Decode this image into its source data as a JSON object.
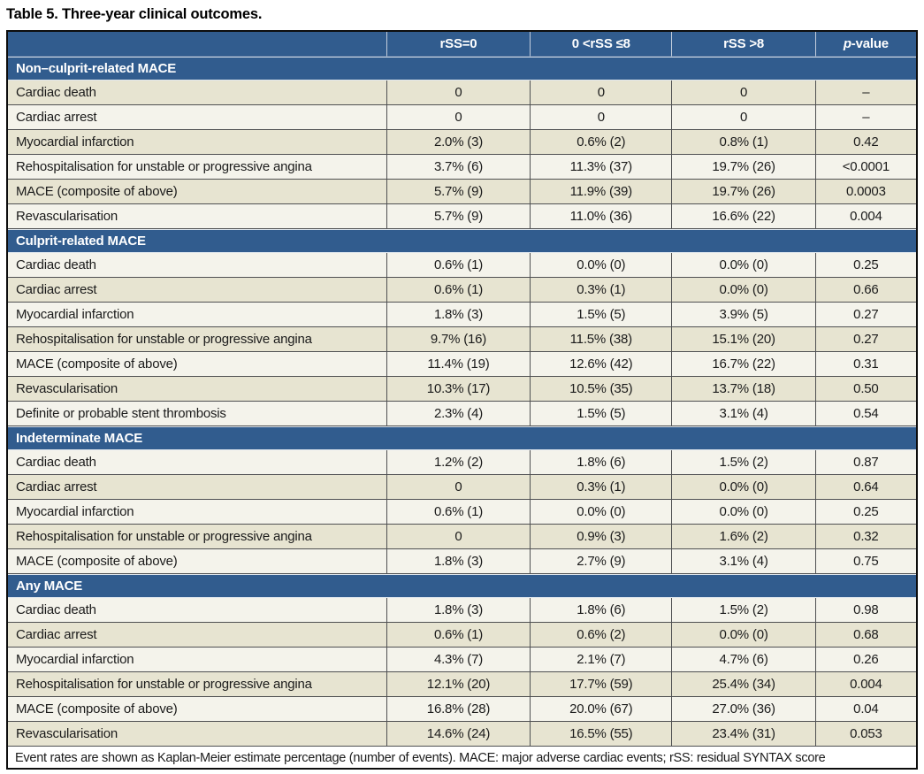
{
  "title": "Table 5. Three-year clinical outcomes.",
  "columns": [
    {
      "label": ""
    },
    {
      "label": "rSS=0"
    },
    {
      "label": "0 <rSS ≤8"
    },
    {
      "label": "rSS >8"
    },
    {
      "label": "p-value",
      "italic_prefix": "p",
      "suffix": "-value"
    }
  ],
  "sections": [
    {
      "header": "Non–culprit-related MACE",
      "rows": [
        {
          "label": "Cardiac death",
          "values": [
            "0",
            "0",
            "0",
            "–"
          ]
        },
        {
          "label": "Cardiac arrest",
          "values": [
            "0",
            "0",
            "0",
            "–"
          ]
        },
        {
          "label": "Myocardial infarction",
          "values": [
            "2.0% (3)",
            "0.6% (2)",
            "0.8% (1)",
            "0.42"
          ]
        },
        {
          "label": "Rehospitalisation for unstable or progressive angina",
          "values": [
            "3.7% (6)",
            "11.3% (37)",
            "19.7% (26)",
            "<0.0001"
          ]
        },
        {
          "label": "MACE (composite of above)",
          "values": [
            "5.7% (9)",
            "11.9% (39)",
            "19.7% (26)",
            "0.0003"
          ]
        },
        {
          "label": "Revascularisation",
          "values": [
            "5.7% (9)",
            "11.0% (36)",
            "16.6% (22)",
            "0.004"
          ]
        }
      ]
    },
    {
      "header": "Culprit-related MACE",
      "rows": [
        {
          "label": "Cardiac death",
          "values": [
            "0.6% (1)",
            "0.0% (0)",
            "0.0% (0)",
            "0.25"
          ]
        },
        {
          "label": "Cardiac arrest",
          "values": [
            "0.6% (1)",
            "0.3% (1)",
            "0.0% (0)",
            "0.66"
          ]
        },
        {
          "label": "Myocardial infarction",
          "values": [
            "1.8% (3)",
            "1.5% (5)",
            "3.9% (5)",
            "0.27"
          ]
        },
        {
          "label": "Rehospitalisation for unstable or progressive angina",
          "values": [
            "9.7% (16)",
            "11.5% (38)",
            "15.1% (20)",
            "0.27"
          ]
        },
        {
          "label": "MACE (composite of above)",
          "values": [
            "11.4% (19)",
            "12.6% (42)",
            "16.7% (22)",
            "0.31"
          ]
        },
        {
          "label": "Revascularisation",
          "values": [
            "10.3% (17)",
            "10.5% (35)",
            "13.7% (18)",
            "0.50"
          ]
        },
        {
          "label": "Definite or probable stent thrombosis",
          "values": [
            "2.3% (4)",
            "1.5% (5)",
            "3.1% (4)",
            "0.54"
          ]
        }
      ]
    },
    {
      "header": "Indeterminate MACE",
      "rows": [
        {
          "label": "Cardiac death",
          "values": [
            "1.2% (2)",
            "1.8% (6)",
            "1.5% (2)",
            "0.87"
          ]
        },
        {
          "label": "Cardiac arrest",
          "values": [
            "0",
            "0.3% (1)",
            "0.0% (0)",
            "0.64"
          ]
        },
        {
          "label": "Myocardial infarction",
          "values": [
            "0.6% (1)",
            "0.0% (0)",
            "0.0% (0)",
            "0.25"
          ]
        },
        {
          "label": "Rehospitalisation for unstable or progressive angina",
          "values": [
            "0",
            "0.9% (3)",
            "1.6% (2)",
            "0.32"
          ]
        },
        {
          "label": "MACE (composite of above)",
          "values": [
            "1.8% (3)",
            "2.7% (9)",
            "3.1% (4)",
            "0.75"
          ]
        }
      ]
    },
    {
      "header": "Any MACE",
      "rows": [
        {
          "label": "Cardiac death",
          "values": [
            "1.8% (3)",
            "1.8% (6)",
            "1.5% (2)",
            "0.98"
          ]
        },
        {
          "label": "Cardiac arrest",
          "values": [
            "0.6% (1)",
            "0.6% (2)",
            "0.0% (0)",
            "0.68"
          ]
        },
        {
          "label": "Myocardial infarction",
          "values": [
            "4.3% (7)",
            "2.1% (7)",
            "4.7% (6)",
            "0.26"
          ]
        },
        {
          "label": "Rehospitalisation for unstable or progressive angina",
          "values": [
            "12.1% (20)",
            "17.7% (59)",
            "25.4% (34)",
            "0.004"
          ]
        },
        {
          "label": "MACE (composite of above)",
          "values": [
            "16.8% (28)",
            "20.0% (67)",
            "27.0% (36)",
            "0.04"
          ]
        },
        {
          "label": "Revascularisation",
          "values": [
            "14.6% (24)",
            "16.5% (55)",
            "23.4% (31)",
            "0.053"
          ]
        }
      ]
    }
  ],
  "footnote": "Event rates are shown as Kaplan-Meier estimate percentage (number of events). MACE: major adverse cardiac events; rSS: residual SYNTAX score",
  "colors": {
    "header_blue": "#315c8e",
    "row_beige": "#e7e4d1",
    "row_cream": "#f4f3eb",
    "grid_line": "#4f5052",
    "outer_border": "#0d0d0d",
    "header_text": "#ffffff",
    "body_text": "#1b1b1b"
  }
}
